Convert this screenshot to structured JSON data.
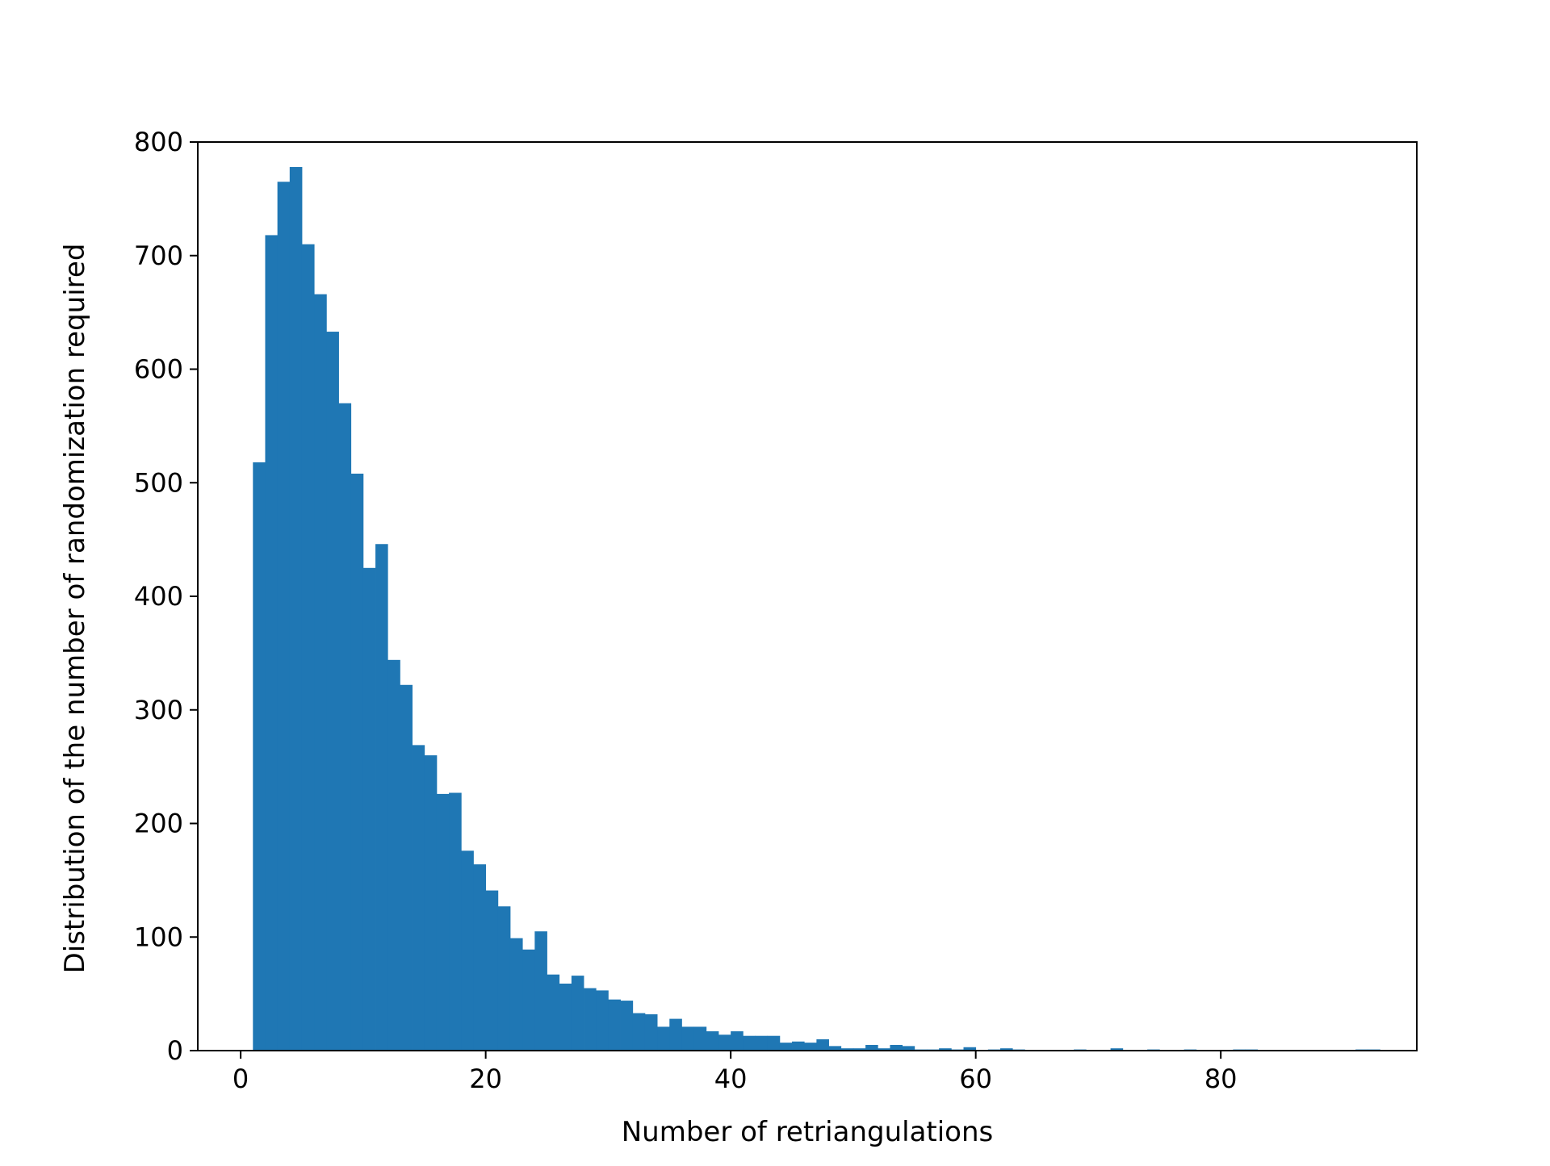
{
  "chart_data": {
    "type": "bar",
    "subtype": "histogram",
    "title": "",
    "xlabel": "Number of retriangulations",
    "ylabel": "Distribution of the number of randomization required",
    "xlim": [
      -3.5,
      96
    ],
    "ylim": [
      0,
      800
    ],
    "xticks": [
      0,
      20,
      40,
      60,
      80
    ],
    "yticks": [
      0,
      100,
      200,
      300,
      400,
      500,
      600,
      700,
      800
    ],
    "grid": false,
    "legend": "none",
    "bar_color": "#1f77b4",
    "bin_start": 1,
    "bin_width": 1,
    "values": [
      518,
      718,
      765,
      778,
      710,
      666,
      633,
      570,
      508,
      425,
      446,
      344,
      322,
      269,
      260,
      226,
      227,
      176,
      164,
      141,
      127,
      99,
      89,
      105,
      67,
      59,
      66,
      55,
      53,
      45,
      44,
      33,
      32,
      21,
      28,
      21,
      21,
      17,
      14,
      17,
      13,
      13,
      13,
      7,
      8,
      7,
      10,
      4,
      2,
      2,
      5,
      2,
      5,
      4,
      1,
      1,
      2,
      1,
      3,
      0,
      1,
      2,
      1,
      0,
      0,
      0,
      0,
      1,
      0,
      0,
      2,
      0,
      0,
      1,
      0,
      0,
      1,
      0,
      0,
      0,
      1,
      1,
      0,
      0,
      0,
      0,
      0,
      0,
      0,
      0,
      1,
      1
    ]
  }
}
